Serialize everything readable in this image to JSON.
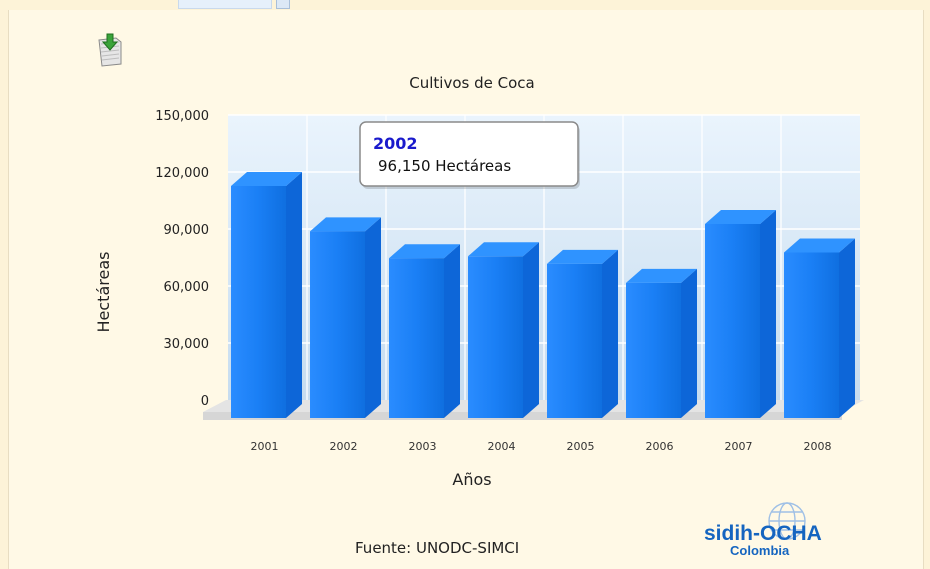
{
  "chart_data": {
    "type": "bar",
    "title": "Cultivos de Coca",
    "xlabel": "Años",
    "ylabel": "Hectáreas",
    "categories": [
      "2001",
      "2002",
      "2003",
      "2004",
      "2005",
      "2006",
      "2007",
      "2008"
    ],
    "series": [
      {
        "values": [
          120000,
          96150,
          82000,
          83000,
          79000,
          69000,
          100000,
          85000
        ]
      }
    ],
    "ylim": [
      0,
      150000
    ],
    "yticks": [
      0,
      30000,
      60000,
      90000,
      120000,
      150000
    ],
    "ytick_labels": [
      "0",
      "30,000",
      "60,000",
      "90,000",
      "120,000",
      "150,000"
    ],
    "grid": true,
    "bar_color": "#1a7ff5",
    "tooltip": {
      "title": "2002",
      "value": "96,150 Hectáreas"
    }
  },
  "footer": {
    "source": "Fuente: UNODC-SIMCI"
  },
  "logo": {
    "brand": "sidih-OCHA",
    "sub": "Colombia"
  },
  "toolbar": {
    "export_icon": "download-icon"
  }
}
